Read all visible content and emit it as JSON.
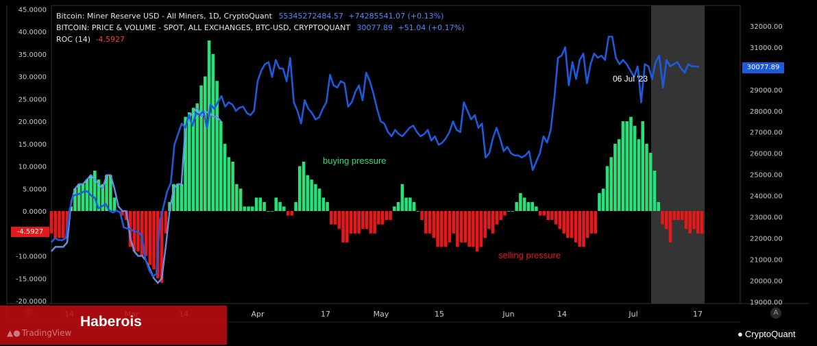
{
  "legend": [
    {
      "name": "Bitcoin: Miner Reserve USD - All Miners, 1D, CryptoQuant",
      "value": "55345272484.57",
      "change": "+74285541.07 (+0.13%)",
      "color": "#4e8cff"
    },
    {
      "name": "BITCOIN: PRICE & VOLUME - SPOT, ALL EXCHANGES, BTC-USD, CRYPTOQUANT",
      "value": "30077.89",
      "change": "+51.04 (+0.17%)",
      "color": "#4e8cff"
    },
    {
      "name": "ROC (14)",
      "value": "-4.5927",
      "change": "",
      "color": "#ff3b3b"
    }
  ],
  "annotations": {
    "buying": "buying pressure",
    "selling": "selling pressure",
    "date": "06 Jul '23"
  },
  "price_label": "30077.89",
  "roc_label": "-4.5927",
  "brand": {
    "haberois": "Haberois",
    "tradingview": "TradingView",
    "cryptoquant": "CryptoQuant"
  },
  "corner": {
    "left": "Z",
    "right": "A"
  },
  "colors": {
    "bg": "#000000",
    "pos": "#27e07a",
    "neg": "#e5181a",
    "price": "#1e5adc",
    "highlight": "#3a3a3a"
  },
  "chart_data": {
    "type": "bar",
    "left_axis": {
      "ticks": [
        "45.0000",
        "40.0000",
        "35.0000",
        "30.0000",
        "25.0000",
        "20.0000",
        "15.0000",
        "10.0000",
        "5.0000",
        "0.0000",
        "-10.0000",
        "-15.0000",
        "-20.0000"
      ],
      "range": [
        -20,
        45
      ]
    },
    "right_axis": {
      "ticks": [
        "32000.00",
        "31000.00",
        "30000.00",
        "29000.00",
        "28000.00",
        "27000.00",
        "26000.00",
        "25000.00",
        "24000.00",
        "23000.00",
        "22000.00",
        "21000.00",
        "20000.00",
        "19000.00"
      ],
      "range": [
        19000,
        32000
      ]
    },
    "x_ticks": [
      "14",
      "Mar",
      "14",
      "Apr",
      "17",
      "May",
      "15",
      "Jun",
      "14",
      "Jul",
      "17"
    ],
    "roc_series": [
      -5,
      -6,
      -6,
      -6,
      -5,
      1,
      5,
      6,
      6,
      7,
      8,
      9,
      7,
      6,
      8,
      8,
      3,
      0,
      -1,
      -2,
      -8,
      -9,
      -9,
      -10,
      -10,
      -12,
      -13,
      -15,
      -16,
      -5,
      2,
      6,
      6,
      6,
      21,
      22,
      23,
      24,
      28,
      30,
      38,
      35,
      29,
      20,
      15,
      12,
      11,
      6,
      5,
      1,
      1,
      1,
      3,
      3,
      2,
      0,
      0,
      3,
      2,
      1,
      -1,
      -1,
      2,
      10,
      11,
      8,
      7,
      6,
      5,
      3,
      2,
      -3,
      -3,
      -4,
      -7,
      -7,
      -5,
      -5,
      -5,
      -4,
      -4,
      -5,
      -5,
      -3,
      -3,
      -2,
      -2,
      1,
      2,
      6,
      3,
      3,
      2,
      0,
      -2,
      -5,
      -5,
      -6,
      -8,
      -8,
      -8,
      -7,
      -5,
      -8,
      -7,
      -7,
      -8,
      -8,
      -9,
      -8,
      -6,
      -4,
      -5,
      -3,
      -2,
      -1,
      0,
      0,
      2,
      4,
      3,
      2,
      2,
      1,
      -1,
      -1,
      -2,
      -2,
      -3,
      -4,
      -5,
      -6,
      -6,
      -7,
      -8,
      -8,
      -6,
      -5,
      -5,
      4,
      5,
      10,
      12,
      15,
      16,
      20,
      20,
      21,
      19,
      16,
      20,
      15,
      13,
      9,
      2,
      -3,
      -4,
      -7,
      -2,
      -2,
      -2,
      -4,
      -5,
      -4,
      -5,
      -5
    ],
    "price_series": [
      21800,
      22000,
      21900,
      21900,
      22000,
      23300,
      24000,
      24050,
      24100,
      24200,
      24200,
      24000,
      23900,
      23400,
      23500,
      23600,
      23300,
      23200,
      23300,
      23200,
      22500,
      22450,
      22400,
      22300,
      22300,
      22100,
      21000,
      20500,
      20200,
      20300,
      22800,
      23500,
      24200,
      24600,
      26400,
      26900,
      27400,
      27200,
      27800,
      27300,
      27900,
      27800,
      28000,
      27200,
      28300,
      28100,
      28400,
      28700,
      28200,
      28400,
      28300,
      28000,
      28150,
      28200,
      27900,
      27800,
      28000,
      29400,
      29900,
      30200,
      30300,
      29600,
      30400,
      30000,
      30000,
      29400,
      30500,
      28400,
      28000,
      27400,
      28500,
      28100,
      27900,
      27600,
      27700,
      28100,
      28400,
      29700,
      29200,
      29100,
      29400,
      29300,
      28200,
      28400,
      28900,
      29200,
      28500,
      29800,
      29400,
      28800,
      28100,
      27500,
      27400,
      27000,
      26800,
      27100,
      26900,
      26800,
      27000,
      27200,
      27300,
      27000,
      26800,
      26900,
      27100,
      26600,
      26800,
      26400,
      26500,
      26700,
      27000,
      27500,
      27100,
      27000,
      28400,
      28000,
      27600,
      27800,
      27200,
      27400,
      25800,
      26000,
      26700,
      27200,
      26700,
      26100,
      26300,
      26000,
      25900,
      25900,
      25800,
      25900,
      26100,
      25200,
      25600,
      26000,
      26800,
      26500,
      27100,
      28600,
      30500,
      30600,
      31000,
      29200,
      30300,
      29500,
      30400,
      30700,
      29300,
      30200,
      30700,
      30500,
      30600,
      30400,
      31500,
      31500,
      30500,
      30200,
      30400,
      30200,
      29900,
      29600,
      30100,
      28400,
      30200,
      30100,
      29500,
      30300,
      30600,
      29100,
      30400,
      30100,
      30200,
      30300,
      30000,
      29800,
      30200,
      30100,
      30100,
      30078
    ],
    "overlay_series": [
      -9,
      -8,
      -8,
      -8,
      -7,
      2,
      5,
      6,
      6,
      7,
      8,
      7,
      6,
      5,
      8,
      8,
      5,
      1,
      0,
      0,
      -6,
      -9,
      -10,
      -10,
      -11,
      -13,
      -15,
      -16,
      -15,
      -8,
      0,
      5,
      6,
      6,
      19,
      21,
      22,
      23,
      21,
      22,
      22,
      21,
      21,
      20
    ]
  }
}
